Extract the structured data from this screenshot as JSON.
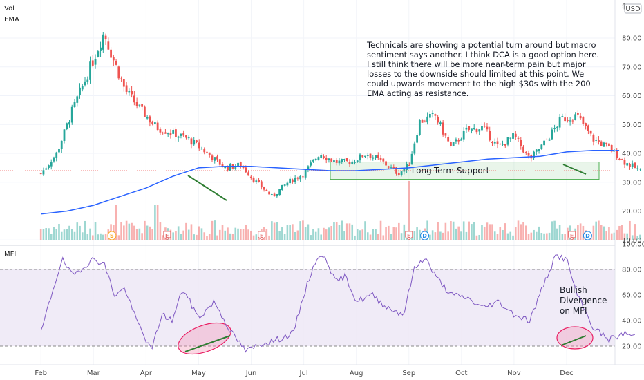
{
  "chart_data": [
    {
      "type": "candlestick",
      "pane": "price",
      "legend": [
        "Vol",
        "EMA"
      ],
      "currency": "USD",
      "currency_symbol": "$",
      "ylim": [
        10,
        90
      ],
      "y_ticks": [
        "80.00",
        "70.00",
        "60.00",
        "50.00",
        "40.00",
        "30.00",
        "20.00",
        "10.00"
      ],
      "x_ticks": [
        "Feb",
        "Mar",
        "Apr",
        "May",
        "Jun",
        "Jul",
        "Aug",
        "Sep",
        "Oct",
        "Nov",
        "Dec"
      ],
      "colors": {
        "up": "#26a69a",
        "down": "#ef5350",
        "ema": "#2962ff",
        "support_zone": "#4caf50",
        "trend_line": "#2e7d32"
      },
      "close_path": [
        {
          "month": 0.0,
          "close": 33
        },
        {
          "month": 0.3,
          "close": 40
        },
        {
          "month": 0.6,
          "close": 55
        },
        {
          "month": 0.9,
          "close": 68
        },
        {
          "month": 1.2,
          "close": 82
        },
        {
          "month": 1.35,
          "close": 74
        },
        {
          "month": 1.6,
          "close": 62
        },
        {
          "month": 1.9,
          "close": 55
        },
        {
          "month": 2.2,
          "close": 49
        },
        {
          "month": 2.5,
          "close": 47
        },
        {
          "month": 2.8,
          "close": 45
        },
        {
          "month": 3.1,
          "close": 41
        },
        {
          "month": 3.5,
          "close": 35
        },
        {
          "month": 3.8,
          "close": 36
        },
        {
          "month": 4.1,
          "close": 30
        },
        {
          "month": 4.4,
          "close": 25
        },
        {
          "month": 4.7,
          "close": 30
        },
        {
          "month": 5.0,
          "close": 33
        },
        {
          "month": 5.3,
          "close": 40
        },
        {
          "month": 5.6,
          "close": 37
        },
        {
          "month": 5.9,
          "close": 37
        },
        {
          "month": 6.2,
          "close": 40
        },
        {
          "month": 6.5,
          "close": 37
        },
        {
          "month": 6.8,
          "close": 33
        },
        {
          "month": 7.0,
          "close": 36
        },
        {
          "month": 7.2,
          "close": 51
        },
        {
          "month": 7.5,
          "close": 53
        },
        {
          "month": 7.8,
          "close": 42
        },
        {
          "month": 8.1,
          "close": 48
        },
        {
          "month": 8.4,
          "close": 49
        },
        {
          "month": 8.7,
          "close": 42
        },
        {
          "month": 9.0,
          "close": 46
        },
        {
          "month": 9.3,
          "close": 38
        },
        {
          "month": 9.6,
          "close": 44
        },
        {
          "month": 9.9,
          "close": 52
        },
        {
          "month": 10.2,
          "close": 53
        },
        {
          "month": 10.5,
          "close": 45
        },
        {
          "month": 10.8,
          "close": 42
        },
        {
          "month": 11.1,
          "close": 37
        },
        {
          "month": 11.4,
          "close": 34
        }
      ],
      "ema_path": [
        {
          "month": 0.0,
          "value": 19
        },
        {
          "month": 0.5,
          "value": 20
        },
        {
          "month": 1.0,
          "value": 22
        },
        {
          "month": 1.5,
          "value": 25
        },
        {
          "month": 2.0,
          "value": 28
        },
        {
          "month": 2.5,
          "value": 32
        },
        {
          "month": 3.0,
          "value": 35
        },
        {
          "month": 3.5,
          "value": 35.5
        },
        {
          "month": 4.0,
          "value": 35.5
        },
        {
          "month": 4.5,
          "value": 35
        },
        {
          "month": 5.0,
          "value": 34.5
        },
        {
          "month": 5.5,
          "value": 34
        },
        {
          "month": 6.0,
          "value": 34
        },
        {
          "month": 6.5,
          "value": 34.5
        },
        {
          "month": 7.0,
          "value": 35
        },
        {
          "month": 7.5,
          "value": 36
        },
        {
          "month": 8.0,
          "value": 37
        },
        {
          "month": 8.5,
          "value": 38
        },
        {
          "month": 9.0,
          "value": 38.5
        },
        {
          "month": 9.5,
          "value": 39
        },
        {
          "month": 10.0,
          "value": 40.5
        },
        {
          "month": 10.5,
          "value": 41
        },
        {
          "month": 11.0,
          "value": 41
        }
      ],
      "support_label": "Long-Term Support",
      "support_range": [
        31,
        37
      ],
      "events": [
        {
          "letter": "S",
          "kind": "split",
          "month": 1.35
        },
        {
          "letter": "E",
          "kind": "earnings",
          "month": 2.4
        },
        {
          "letter": "E",
          "kind": "earnings",
          "month": 4.2
        },
        {
          "letter": "E",
          "kind": "earnings",
          "month": 7.0
        },
        {
          "letter": "D",
          "kind": "dividend",
          "month": 7.3
        },
        {
          "letter": "E",
          "kind": "earnings",
          "month": 10.1
        },
        {
          "letter": "D",
          "kind": "dividend",
          "month": 10.4
        }
      ],
      "annotation": [
        "Technicals are showing a potential turn around but macro",
        "sentiment says another. I think DCA is a good option here.",
        "I still think there will be more near-term pain but major",
        "losses to the downside should limited at this point. We",
        "could upwards movement to the high $30s with the 200",
        "EMA acting as resistance."
      ]
    },
    {
      "type": "line",
      "pane": "indicator",
      "legend": [
        "MFI"
      ],
      "ylim": [
        10,
        100
      ],
      "y_ticks": [
        "100.00",
        "80.00",
        "60.00",
        "40.00",
        "20.00"
      ],
      "bands": [
        20,
        80
      ],
      "colors": {
        "line": "#7e57c2",
        "band_fill": "#ede7f6",
        "ellipse": "#e91e63",
        "trend_line": "#2e7d32"
      },
      "series": [
        {
          "values": [
            {
              "month": 0.0,
              "value": 30
            },
            {
              "month": 0.2,
              "value": 60
            },
            {
              "month": 0.4,
              "value": 88
            },
            {
              "month": 0.6,
              "value": 75
            },
            {
              "month": 0.8,
              "value": 82
            },
            {
              "month": 1.0,
              "value": 88
            },
            {
              "month": 1.2,
              "value": 85
            },
            {
              "month": 1.4,
              "value": 60
            },
            {
              "month": 1.6,
              "value": 65
            },
            {
              "month": 1.8,
              "value": 42
            },
            {
              "month": 2.0,
              "value": 25
            },
            {
              "month": 2.1,
              "value": 16
            },
            {
              "month": 2.3,
              "value": 45
            },
            {
              "month": 2.5,
              "value": 40
            },
            {
              "month": 2.7,
              "value": 65
            },
            {
              "month": 3.0,
              "value": 42
            },
            {
              "month": 3.3,
              "value": 55
            },
            {
              "month": 3.6,
              "value": 32
            },
            {
              "month": 3.9,
              "value": 16
            },
            {
              "month": 4.2,
              "value": 22
            },
            {
              "month": 4.5,
              "value": 25
            },
            {
              "month": 4.8,
              "value": 30
            },
            {
              "month": 5.0,
              "value": 60
            },
            {
              "month": 5.2,
              "value": 85
            },
            {
              "month": 5.4,
              "value": 92
            },
            {
              "month": 5.6,
              "value": 70
            },
            {
              "month": 5.8,
              "value": 75
            },
            {
              "month": 6.0,
              "value": 55
            },
            {
              "month": 6.3,
              "value": 60
            },
            {
              "month": 6.6,
              "value": 50
            },
            {
              "month": 6.9,
              "value": 45
            },
            {
              "month": 7.1,
              "value": 80
            },
            {
              "month": 7.3,
              "value": 90
            },
            {
              "month": 7.5,
              "value": 75
            },
            {
              "month": 7.8,
              "value": 60
            },
            {
              "month": 8.1,
              "value": 58
            },
            {
              "month": 8.4,
              "value": 50
            },
            {
              "month": 8.7,
              "value": 55
            },
            {
              "month": 9.0,
              "value": 45
            },
            {
              "month": 9.3,
              "value": 40
            },
            {
              "month": 9.6,
              "value": 72
            },
            {
              "month": 9.8,
              "value": 91
            },
            {
              "month": 10.0,
              "value": 88
            },
            {
              "month": 10.2,
              "value": 60
            },
            {
              "month": 10.5,
              "value": 35
            },
            {
              "month": 10.8,
              "value": 25
            },
            {
              "month": 11.1,
              "value": 30
            },
            {
              "month": 11.3,
              "value": 28
            }
          ]
        }
      ],
      "annotation": [
        "Bullish",
        "Divergence",
        "on MFI"
      ]
    }
  ]
}
